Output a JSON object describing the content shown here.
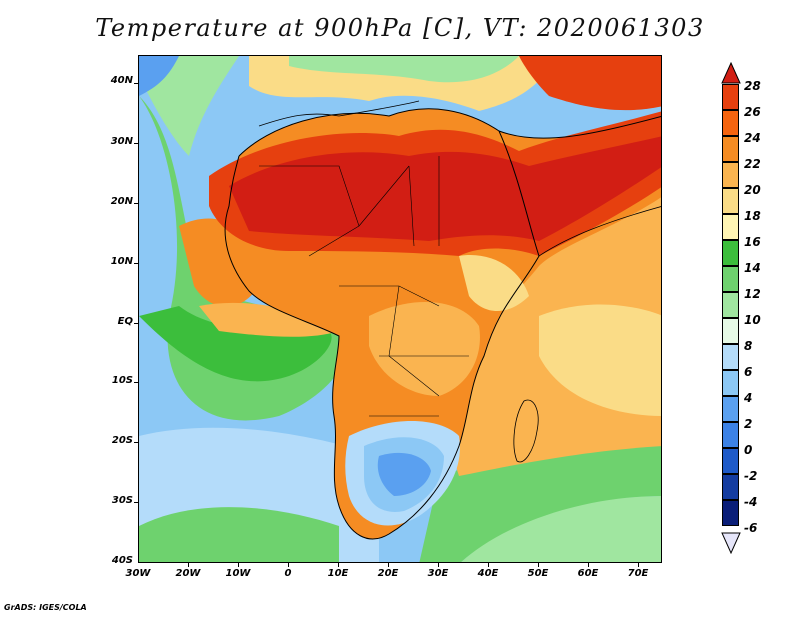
{
  "title": "Temperature at 900hPa [C], VT: 2020061303",
  "footer": "GrADS: IGES/COLA",
  "map": {
    "region": "Africa, Middle East and surrounding oceans",
    "variable": "temperature",
    "level": "900hPa",
    "units": "C",
    "lon_range": [
      -30,
      75
    ],
    "lat_range": [
      -40,
      45
    ],
    "lat_labels": [
      "40N",
      "30N",
      "20N",
      "10N",
      "EQ",
      "10S",
      "20S",
      "30S",
      "40S"
    ],
    "lon_labels": [
      "30W",
      "20W",
      "10W",
      "0",
      "10E",
      "20E",
      "30E",
      "40E",
      "50E",
      "60E",
      "70E"
    ]
  },
  "colorbar": {
    "labels": [
      "28",
      "26",
      "24",
      "22",
      "20",
      "18",
      "16",
      "14",
      "12",
      "10",
      "8",
      "6",
      "4",
      "2",
      "0",
      "-2",
      "-4",
      "-6"
    ],
    "colors": [
      "#d21e14",
      "#e6400f",
      "#f5640f",
      "#f58c23",
      "#fab450",
      "#fadc87",
      "#fff5b4",
      "#3cbe3c",
      "#6ed26e",
      "#a0e6a0",
      "#e6fae6",
      "#b4dcfa",
      "#8cc8f5",
      "#5aa0f0",
      "#3c82e6",
      "#1e5ac8",
      "#143ca0",
      "#0a1e78",
      "#e6e6fa"
    ]
  }
}
